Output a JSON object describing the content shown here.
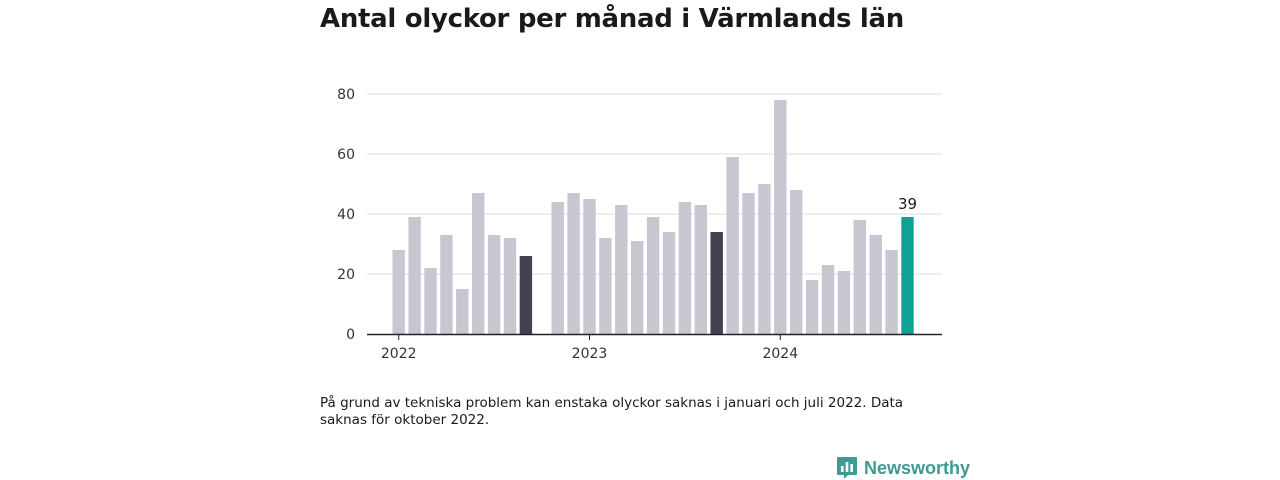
{
  "chart_data": {
    "type": "bar",
    "title": "Antal olyckor per månad i Värmlands län",
    "x": [
      "2022-01",
      "2022-02",
      "2022-03",
      "2022-04",
      "2022-05",
      "2022-06",
      "2022-07",
      "2022-08",
      "2022-09",
      "2022-10",
      "2022-11",
      "2022-12",
      "2023-01",
      "2023-02",
      "2023-03",
      "2023-04",
      "2023-05",
      "2023-06",
      "2023-07",
      "2023-08",
      "2023-09",
      "2023-10",
      "2023-11",
      "2023-12",
      "2024-01",
      "2024-02",
      "2024-03",
      "2024-04",
      "2024-05",
      "2024-06",
      "2024-07",
      "2024-08",
      "2024-09"
    ],
    "values": [
      28,
      39,
      22,
      33,
      15,
      47,
      33,
      32,
      26,
      null,
      44,
      47,
      45,
      32,
      43,
      31,
      39,
      34,
      44,
      43,
      34,
      59,
      47,
      50,
      78,
      48,
      18,
      23,
      21,
      38,
      33,
      28,
      39
    ],
    "highlight_dark": [
      "2022-09",
      "2023-09"
    ],
    "highlight_accent": [
      "2024-09"
    ],
    "x_ticks": [
      "2022",
      "2023",
      "2024"
    ],
    "y_ticks": [
      0,
      20,
      40,
      60,
      80
    ],
    "ylim": [
      0,
      80
    ],
    "data_label": {
      "x": "2024-09",
      "text": "39"
    },
    "colors": {
      "default": "#c8c6d1",
      "dark": "#434150",
      "accent": "#0ea294",
      "grid": "#dddddd",
      "axis": "#222222"
    }
  },
  "note": "På grund av tekniska problem kan enstaka olyckor saknas i januari och juli 2022. Data saknas för oktober 2022.",
  "brand": {
    "name": "Newsworthy",
    "icon": "bar-chart-icon",
    "color": "#3f9a92"
  }
}
